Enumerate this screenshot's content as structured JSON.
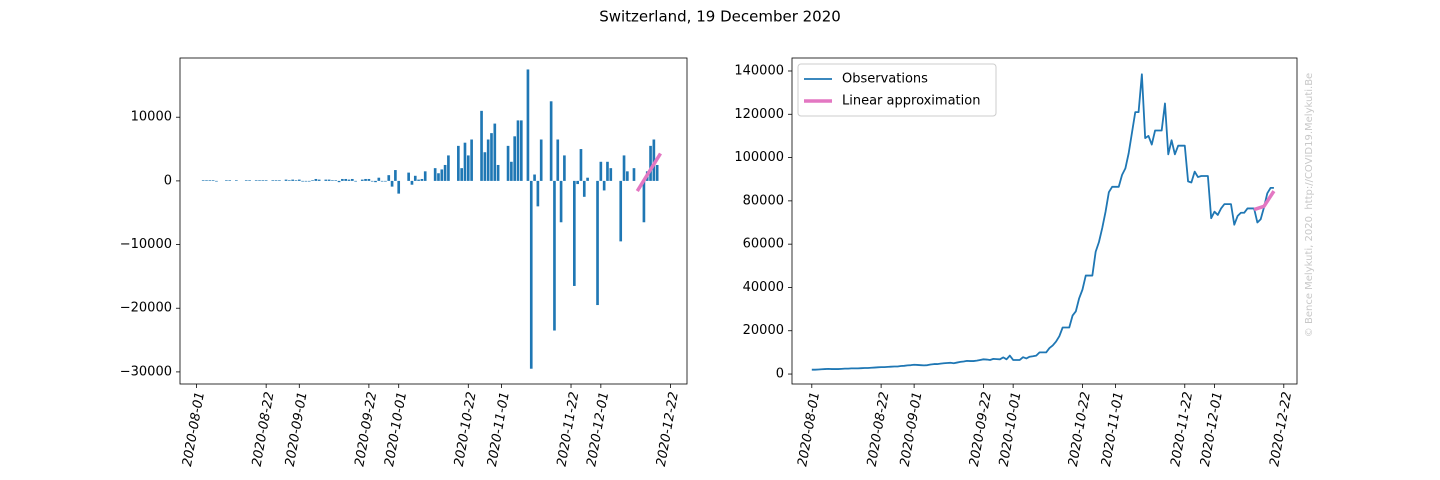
{
  "title": "Switzerland, 19 December 2020",
  "watermark": "© Bence Melykuti, 2020. http://COVID19.Melykuti.Be",
  "chart_data": [
    {
      "type": "bar",
      "xlim": [
        "2020-07-27",
        "2020-12-27"
      ],
      "xticks": [
        "2020-08-01",
        "2020-08-22",
        "2020-09-01",
        "2020-09-22",
        "2020-10-01",
        "2020-10-22",
        "2020-11-01",
        "2020-11-22",
        "2020-12-01",
        "2020-12-22"
      ],
      "ylim": [
        -31900,
        19300
      ],
      "yticks": [
        {
          "value": -30000,
          "label": "−30000"
        },
        {
          "value": -20000,
          "label": "−20000"
        },
        {
          "value": -10000,
          "label": "−10000"
        },
        0,
        10000
      ],
      "series": [
        {
          "type": "bar",
          "color": "#1f77b4",
          "x": [
            "2020-08-02",
            "2020-08-03",
            "2020-08-04",
            "2020-08-05",
            "2020-08-06",
            "2020-08-07",
            "2020-08-08",
            "2020-08-09",
            "2020-08-10",
            "2020-08-11",
            "2020-08-12",
            "2020-08-13",
            "2020-08-14",
            "2020-08-15",
            "2020-08-16",
            "2020-08-17",
            "2020-08-18",
            "2020-08-19",
            "2020-08-20",
            "2020-08-21",
            "2020-08-22",
            "2020-08-23",
            "2020-08-24",
            "2020-08-25",
            "2020-08-26",
            "2020-08-27",
            "2020-08-28",
            "2020-08-29",
            "2020-08-30",
            "2020-08-31",
            "2020-09-01",
            "2020-09-02",
            "2020-09-03",
            "2020-09-04",
            "2020-09-05",
            "2020-09-06",
            "2020-09-07",
            "2020-09-08",
            "2020-09-09",
            "2020-09-10",
            "2020-09-11",
            "2020-09-12",
            "2020-09-13",
            "2020-09-14",
            "2020-09-15",
            "2020-09-16",
            "2020-09-17",
            "2020-09-18",
            "2020-09-19",
            "2020-09-20",
            "2020-09-21",
            "2020-09-22",
            "2020-09-23",
            "2020-09-24",
            "2020-09-25",
            "2020-09-26",
            "2020-09-27",
            "2020-09-28",
            "2020-09-29",
            "2020-09-30",
            "2020-10-01",
            "2020-10-02",
            "2020-10-03",
            "2020-10-04",
            "2020-10-05",
            "2020-10-06",
            "2020-10-07",
            "2020-10-08",
            "2020-10-09",
            "2020-10-10",
            "2020-10-11",
            "2020-10-12",
            "2020-10-13",
            "2020-10-14",
            "2020-10-15",
            "2020-10-16",
            "2020-10-17",
            "2020-10-18",
            "2020-10-19",
            "2020-10-20",
            "2020-10-21",
            "2020-10-22",
            "2020-10-23",
            "2020-10-24",
            "2020-10-25",
            "2020-10-26",
            "2020-10-27",
            "2020-10-28",
            "2020-10-29",
            "2020-10-30",
            "2020-10-31",
            "2020-11-01",
            "2020-11-02",
            "2020-11-03",
            "2020-11-04",
            "2020-11-05",
            "2020-11-06",
            "2020-11-07",
            "2020-11-08",
            "2020-11-09",
            "2020-11-10",
            "2020-11-11",
            "2020-11-12",
            "2020-11-13",
            "2020-11-14",
            "2020-11-15",
            "2020-11-16",
            "2020-11-17",
            "2020-11-18",
            "2020-11-19",
            "2020-11-20",
            "2020-11-21",
            "2020-11-22",
            "2020-11-23",
            "2020-11-24",
            "2020-11-25",
            "2020-11-26",
            "2020-11-27",
            "2020-11-28",
            "2020-11-29",
            "2020-11-30",
            "2020-12-01",
            "2020-12-02",
            "2020-12-03",
            "2020-12-04",
            "2020-12-05",
            "2020-12-06",
            "2020-12-07",
            "2020-12-08",
            "2020-12-09",
            "2020-12-10",
            "2020-12-11",
            "2020-12-12",
            "2020-12-13",
            "2020-12-14",
            "2020-12-15",
            "2020-12-16",
            "2020-12-17",
            "2020-12-18",
            "2020-12-19"
          ],
          "values": [
            0,
            100,
            100,
            100,
            100,
            -100,
            0,
            0,
            100,
            100,
            0,
            100,
            0,
            0,
            100,
            100,
            0,
            100,
            100,
            100,
            100,
            0,
            100,
            100,
            100,
            0,
            200,
            100,
            200,
            100,
            200,
            -100,
            -100,
            -100,
            100,
            300,
            200,
            0,
            200,
            200,
            100,
            100,
            -200,
            300,
            300,
            200,
            300,
            -100,
            0,
            200,
            300,
            300,
            -100,
            -200,
            500,
            -100,
            -100,
            900,
            -900,
            1700,
            -2000,
            0,
            0,
            1300,
            -600,
            800,
            200,
            300,
            1500,
            0,
            0,
            2000,
            1200,
            1800,
            2500,
            4000,
            0,
            0,
            5500,
            2000,
            6000,
            4000,
            6500,
            0,
            0,
            11000,
            4500,
            6500,
            7500,
            9000,
            2500,
            0,
            0,
            5500,
            3000,
            7000,
            9500,
            9500,
            0,
            17500,
            -29500,
            1000,
            -4000,
            6500,
            0,
            0,
            12500,
            -23500,
            6500,
            -6500,
            4000,
            0,
            0,
            -16500,
            -500,
            5000,
            -2500,
            500,
            0,
            0,
            -19500,
            3000,
            -1500,
            3000,
            2000,
            0,
            0,
            -9500,
            4000,
            1500,
            0,
            2000,
            0,
            0,
            -6500,
            1500,
            5500,
            6500,
            2500,
            0
          ]
        },
        {
          "type": "line",
          "color": "#e377c2",
          "x": [
            "2020-12-12",
            "2020-12-19"
          ],
          "values": [
            -1600,
            4300
          ]
        }
      ]
    },
    {
      "type": "line",
      "xlim": [
        "2020-07-26",
        "2020-12-26"
      ],
      "xticks": [
        "2020-08-01",
        "2020-08-22",
        "2020-09-01",
        "2020-09-22",
        "2020-10-01",
        "2020-10-22",
        "2020-11-01",
        "2020-11-22",
        "2020-12-01",
        "2020-12-22"
      ],
      "ylim": [
        -4600,
        146000
      ],
      "yticks": [
        0,
        20000,
        40000,
        60000,
        80000,
        100000,
        120000,
        140000
      ],
      "legend": "upper left",
      "series": [
        {
          "name": "Observations",
          "type": "line",
          "color": "#1f77b4",
          "x": [
            "2020-08-01",
            "2020-08-02",
            "2020-08-03",
            "2020-08-04",
            "2020-08-05",
            "2020-08-06",
            "2020-08-07",
            "2020-08-08",
            "2020-08-09",
            "2020-08-10",
            "2020-08-11",
            "2020-08-12",
            "2020-08-13",
            "2020-08-14",
            "2020-08-15",
            "2020-08-16",
            "2020-08-17",
            "2020-08-18",
            "2020-08-19",
            "2020-08-20",
            "2020-08-21",
            "2020-08-22",
            "2020-08-23",
            "2020-08-24",
            "2020-08-25",
            "2020-08-26",
            "2020-08-27",
            "2020-08-28",
            "2020-08-29",
            "2020-08-30",
            "2020-08-31",
            "2020-09-01",
            "2020-09-02",
            "2020-09-03",
            "2020-09-04",
            "2020-09-05",
            "2020-09-06",
            "2020-09-07",
            "2020-09-08",
            "2020-09-09",
            "2020-09-10",
            "2020-09-11",
            "2020-09-12",
            "2020-09-13",
            "2020-09-14",
            "2020-09-15",
            "2020-09-16",
            "2020-09-17",
            "2020-09-18",
            "2020-09-19",
            "2020-09-20",
            "2020-09-21",
            "2020-09-22",
            "2020-09-23",
            "2020-09-24",
            "2020-09-25",
            "2020-09-26",
            "2020-09-27",
            "2020-09-28",
            "2020-09-29",
            "2020-09-30",
            "2020-10-01",
            "2020-10-02",
            "2020-10-03",
            "2020-10-04",
            "2020-10-05",
            "2020-10-06",
            "2020-10-07",
            "2020-10-08",
            "2020-10-09",
            "2020-10-10",
            "2020-10-11",
            "2020-10-12",
            "2020-10-13",
            "2020-10-14",
            "2020-10-15",
            "2020-10-16",
            "2020-10-17",
            "2020-10-18",
            "2020-10-19",
            "2020-10-20",
            "2020-10-21",
            "2020-10-22",
            "2020-10-23",
            "2020-10-24",
            "2020-10-25",
            "2020-10-26",
            "2020-10-27",
            "2020-10-28",
            "2020-10-29",
            "2020-10-30",
            "2020-10-31",
            "2020-11-01",
            "2020-11-02",
            "2020-11-03",
            "2020-11-04",
            "2020-11-05",
            "2020-11-06",
            "2020-11-07",
            "2020-11-08",
            "2020-11-09",
            "2020-11-10",
            "2020-11-11",
            "2020-11-12",
            "2020-11-13",
            "2020-11-14",
            "2020-11-15",
            "2020-11-16",
            "2020-11-17",
            "2020-11-18",
            "2020-11-19",
            "2020-11-20",
            "2020-11-21",
            "2020-11-22",
            "2020-11-23",
            "2020-11-24",
            "2020-11-25",
            "2020-11-26",
            "2020-11-27",
            "2020-11-28",
            "2020-11-29",
            "2020-11-30",
            "2020-12-01",
            "2020-12-02",
            "2020-12-03",
            "2020-12-04",
            "2020-12-05",
            "2020-12-06",
            "2020-12-07",
            "2020-12-08",
            "2020-12-09",
            "2020-12-10",
            "2020-12-11",
            "2020-12-12",
            "2020-12-13",
            "2020-12-14",
            "2020-12-15",
            "2020-12-16",
            "2020-12-17",
            "2020-12-18",
            "2020-12-19"
          ],
          "values": [
            2000,
            2000,
            2100,
            2200,
            2300,
            2400,
            2300,
            2300,
            2300,
            2400,
            2500,
            2500,
            2600,
            2600,
            2600,
            2700,
            2800,
            2800,
            2900,
            3000,
            3100,
            3200,
            3200,
            3300,
            3400,
            3500,
            3500,
            3700,
            3800,
            4000,
            4100,
            4300,
            4200,
            4100,
            4000,
            4100,
            4400,
            4600,
            4600,
            4800,
            5000,
            5100,
            5200,
            5000,
            5300,
            5600,
            5800,
            6100,
            6000,
            6000,
            6200,
            6500,
            6800,
            6700,
            6500,
            7000,
            6900,
            6800,
            7700,
            6800,
            8500,
            6500,
            6500,
            6500,
            7800,
            7200,
            8000,
            8200,
            8500,
            10000,
            10000,
            10000,
            12000,
            13200,
            15000,
            17500,
            21500,
            21500,
            21500,
            27000,
            29000,
            35000,
            39000,
            45500,
            45500,
            45500,
            56500,
            61000,
            67500,
            75000,
            84000,
            86500,
            86500,
            86500,
            92000,
            95000,
            102000,
            111500,
            121000,
            121000,
            138500,
            109000,
            110000,
            106000,
            112500,
            112500,
            112500,
            125000,
            101500,
            108000,
            101500,
            105500,
            105500,
            105500,
            89000,
            88500,
            93500,
            91000,
            91500,
            91500,
            91500,
            72000,
            75000,
            73500,
            76500,
            78500,
            78500,
            78500,
            69000,
            73000,
            74500,
            74500,
            76500,
            76500,
            76500,
            70000,
            71500,
            77000,
            83500,
            86000,
            86000
          ]
        },
        {
          "name": "Linear approximation",
          "type": "line",
          "color": "#e377c2",
          "x": [
            "2020-12-13",
            "2020-12-16",
            "2020-12-19"
          ],
          "values": [
            76000,
            77500,
            84500
          ]
        }
      ]
    }
  ]
}
